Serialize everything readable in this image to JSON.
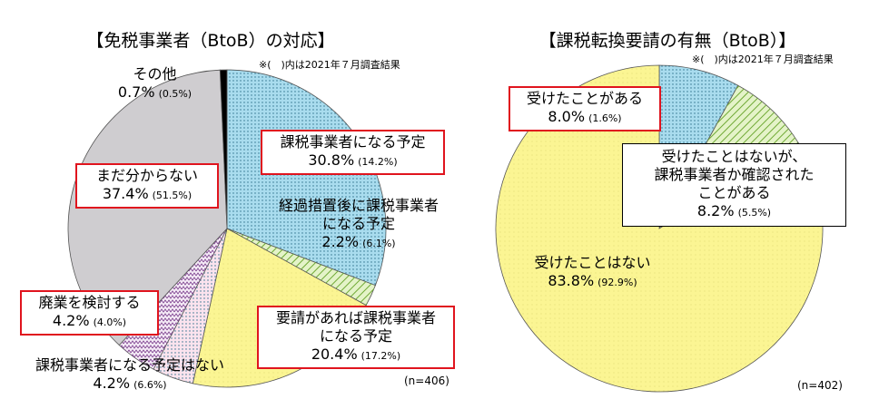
{
  "chart_data": [
    {
      "type": "pie",
      "title": "【免税事業者（BtoB）の対応】",
      "note": "※(　)内は2021年７月調査結果",
      "sample_size": "(n=406)",
      "categories": [
        "課税事業者になる予定",
        "経過措置後に課税事業者\nになる予定",
        "要請があれば課税事業者\nになる予定",
        "課税事業者になる予定はない",
        "廃業を検討する",
        "まだ分からない",
        "その他"
      ],
      "values": [
        30.8,
        2.2,
        20.4,
        4.2,
        4.2,
        37.4,
        0.7
      ],
      "value_labels": [
        "30.8%",
        "2.2%",
        "20.4%",
        "4.2%",
        "4.2%",
        "37.4%",
        "0.7%"
      ],
      "previous_values": [
        14.2,
        6.1,
        17.2,
        6.6,
        4.0,
        51.5,
        0.5
      ],
      "previous_value_labels": [
        "(14.2%)",
        "(6.1%)",
        "(17.2%)",
        "(6.6%)",
        "(4.0%)",
        "(51.5%)",
        "(0.5%)"
      ],
      "colors": [
        "#a9dcee",
        "#e4f3c8",
        "#fbf593",
        "#fbe3ee",
        "#f4eaf6",
        "#cfcdd0",
        "#000000"
      ],
      "patterns": [
        "dots",
        "stripes",
        "fine",
        "dots",
        "zigzag",
        "none",
        "none"
      ]
    },
    {
      "type": "pie",
      "title": "【課税転換要請の有無（BtoB）】",
      "note": "※(　)内は2021年７月調査結果",
      "sample_size": "(n=402)",
      "categories": [
        "受けたことがある",
        "受けたことはないが、\n課税事業者か確認された\nことがある",
        "受けたことはない"
      ],
      "values": [
        8.0,
        8.2,
        83.8
      ],
      "value_labels": [
        "8.0%",
        "8.2%",
        "83.8%"
      ],
      "previous_values": [
        1.6,
        5.5,
        92.9
      ],
      "previous_value_labels": [
        "(1.6%)",
        "(5.5%)",
        "(92.9%)"
      ],
      "colors": [
        "#a9dcee",
        "#e4f3c8",
        "#fbf593"
      ],
      "patterns": [
        "dots",
        "stripes",
        "fine"
      ]
    }
  ]
}
